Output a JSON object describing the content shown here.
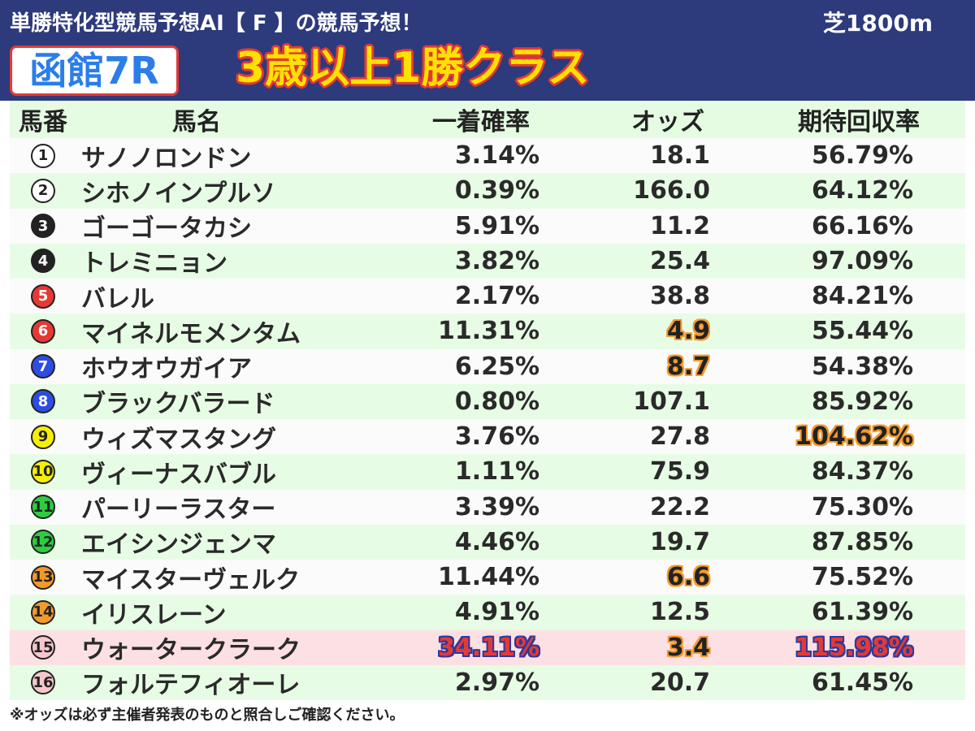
{
  "header": {
    "subtitle": "単勝特化型競馬予想AI【 F 】の競馬予想！",
    "surface": "芝1800m",
    "venue_race": "函館7R",
    "race_class": "3歳以上1勝クラス"
  },
  "table": {
    "columns": [
      "馬番",
      "馬名",
      "一着確率",
      "オッズ",
      "期待回収率"
    ],
    "rows": [
      {
        "no": "1",
        "name": "サノノロンドン",
        "prob": "3.14%",
        "odds": "18.1",
        "ev": "56.79%",
        "badge_bg": "#ffffff",
        "badge_fg": "#222222"
      },
      {
        "no": "2",
        "name": "シホノインプルソ",
        "prob": "0.39%",
        "odds": "166.0",
        "ev": "64.12%",
        "badge_bg": "#ffffff",
        "badge_fg": "#222222"
      },
      {
        "no": "3",
        "name": "ゴーゴータカシ",
        "prob": "5.91%",
        "odds": "11.2",
        "ev": "66.16%",
        "badge_bg": "#222222",
        "badge_fg": "#ffffff"
      },
      {
        "no": "4",
        "name": "トレミニョン",
        "prob": "3.82%",
        "odds": "25.4",
        "ev": "97.09%",
        "badge_bg": "#222222",
        "badge_fg": "#ffffff"
      },
      {
        "no": "5",
        "name": "バレル",
        "prob": "2.17%",
        "odds": "38.8",
        "ev": "84.21%",
        "badge_bg": "#e53935",
        "badge_fg": "#ffffff"
      },
      {
        "no": "6",
        "name": "マイネルモメンタム",
        "prob": "11.31%",
        "odds": "4.9",
        "ev": "55.44%",
        "badge_bg": "#e53935",
        "badge_fg": "#ffffff",
        "odds_hl": "orange"
      },
      {
        "no": "7",
        "name": "ホウオウガイア",
        "prob": "6.25%",
        "odds": "8.7",
        "ev": "54.38%",
        "badge_bg": "#2d4de0",
        "badge_fg": "#ffffff",
        "odds_hl": "orange"
      },
      {
        "no": "8",
        "name": "ブラックバラード",
        "prob": "0.80%",
        "odds": "107.1",
        "ev": "85.92%",
        "badge_bg": "#2d4de0",
        "badge_fg": "#ffffff"
      },
      {
        "no": "9",
        "name": "ウィズマスタング",
        "prob": "3.76%",
        "odds": "27.8",
        "ev": "104.62%",
        "badge_bg": "#f5f000",
        "badge_fg": "#222222",
        "ev_hl": "orange"
      },
      {
        "no": "10",
        "name": "ヴィーナスバブル",
        "prob": "1.11%",
        "odds": "75.9",
        "ev": "84.37%",
        "badge_bg": "#f5f000",
        "badge_fg": "#222222"
      },
      {
        "no": "11",
        "name": "パーリーラスター",
        "prob": "3.39%",
        "odds": "22.2",
        "ev": "75.30%",
        "badge_bg": "#2ecc40",
        "badge_fg": "#222222"
      },
      {
        "no": "12",
        "name": "エイシンジェンマ",
        "prob": "4.46%",
        "odds": "19.7",
        "ev": "87.85%",
        "badge_bg": "#2ecc40",
        "badge_fg": "#222222"
      },
      {
        "no": "13",
        "name": "マイスターヴェルク",
        "prob": "11.44%",
        "odds": "6.6",
        "ev": "75.52%",
        "badge_bg": "#f39a2b",
        "badge_fg": "#222222",
        "odds_hl": "orange"
      },
      {
        "no": "14",
        "name": "イリスレーン",
        "prob": "4.91%",
        "odds": "12.5",
        "ev": "61.39%",
        "badge_bg": "#f39a2b",
        "badge_fg": "#222222"
      },
      {
        "no": "15",
        "name": "ウォータークラーク",
        "prob": "34.11%",
        "odds": "3.4",
        "ev": "115.98%",
        "badge_bg": "#f7c6cc",
        "badge_fg": "#222222",
        "highlight_row": true,
        "prob_hl": "blue",
        "odds_hl": "orange",
        "ev_hl": "blue"
      },
      {
        "no": "16",
        "name": "フォルテフィオーレ",
        "prob": "2.97%",
        "odds": "20.7",
        "ev": "61.45%",
        "badge_bg": "#f7c6cc",
        "badge_fg": "#222222"
      }
    ]
  },
  "footnote": "※オッズは必ず主催者発表のものと照合しご確認ください。",
  "colors": {
    "header_bg": "#2d3a7c",
    "row_green": "#e7fce5",
    "row_white": "#fbfbfb",
    "row_pink": "#fde0e3",
    "highlight_orange": "#f39a2b",
    "highlight_blue": "#2d3a9c",
    "highlight_red": "#e53935"
  }
}
